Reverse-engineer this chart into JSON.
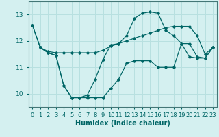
{
  "xlabel": "Humidex (Indice chaleur)",
  "background_color": "#d4f0f0",
  "grid_color": "#b8e0e0",
  "line_color": "#006666",
  "xlim": [
    -0.5,
    23.5
  ],
  "ylim": [
    9.5,
    13.5
  ],
  "yticks": [
    10,
    11,
    12,
    13
  ],
  "xticks": [
    0,
    1,
    2,
    3,
    4,
    5,
    6,
    7,
    8,
    9,
    10,
    11,
    12,
    13,
    14,
    15,
    16,
    17,
    18,
    19,
    20,
    21,
    22,
    23
  ],
  "lines": [
    {
      "x": [
        0,
        1,
        2,
        3,
        4,
        5,
        6,
        7,
        8,
        9,
        10,
        11,
        12,
        13,
        14,
        15,
        16,
        17,
        18,
        19,
        20,
        21,
        22,
        23
      ],
      "y": [
        12.6,
        11.75,
        11.6,
        11.55,
        11.55,
        11.55,
        11.55,
        11.55,
        11.55,
        11.65,
        11.8,
        11.9,
        12.0,
        12.1,
        12.2,
        12.3,
        12.4,
        12.5,
        12.55,
        12.55,
        12.55,
        12.2,
        11.5,
        11.75
      ]
    },
    {
      "x": [
        0,
        1,
        2,
        3,
        4,
        5,
        6,
        7,
        8,
        9,
        10,
        11,
        12,
        13,
        14,
        15,
        16,
        17,
        18,
        19,
        20,
        21,
        22,
        23
      ],
      "y": [
        12.6,
        11.75,
        11.55,
        11.45,
        10.3,
        9.85,
        9.85,
        9.95,
        10.55,
        11.3,
        11.85,
        11.9,
        12.2,
        12.85,
        13.05,
        13.1,
        13.05,
        12.4,
        12.2,
        11.9,
        11.9,
        11.4,
        11.35,
        11.75
      ]
    },
    {
      "x": [
        1,
        2,
        3,
        4,
        5,
        6,
        7,
        8,
        9,
        10,
        11,
        12,
        13,
        14,
        15,
        16,
        17,
        18,
        19,
        20,
        21,
        22,
        23
      ],
      "y": [
        11.75,
        11.55,
        11.45,
        10.3,
        9.85,
        9.85,
        9.85,
        9.85,
        9.85,
        10.2,
        10.55,
        11.15,
        11.25,
        11.25,
        11.25,
        11.0,
        11.0,
        11.0,
        11.9,
        11.4,
        11.35,
        11.35,
        11.75
      ]
    }
  ],
  "xlabel_fontsize": 7,
  "tick_fontsize": 6
}
